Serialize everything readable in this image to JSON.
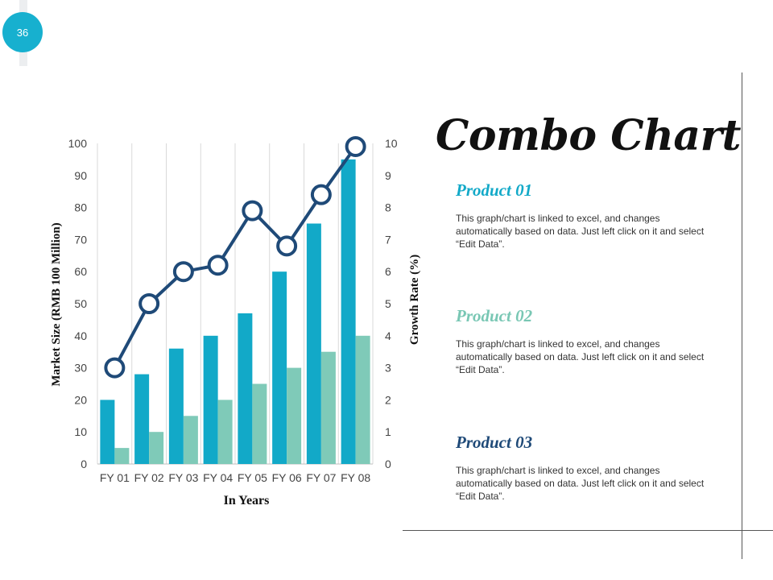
{
  "slide": {
    "number": "36"
  },
  "title": "Combo Chart",
  "colors": {
    "badge": "#17b0cf",
    "product1": "#12a9c8",
    "product2": "#79c7b4",
    "product3": "#1f4a78"
  },
  "products": [
    {
      "name": "Product 01",
      "description": "This graph/chart is linked to excel, and changes automatically based on data. Just left click on it and select “Edit Data”."
    },
    {
      "name": "Product 02",
      "description": "This graph/chart is linked to excel, and changes automatically based on data. Just left click on it and select “Edit Data”."
    },
    {
      "name": "Product 03",
      "description": "This graph/chart is linked to excel, and changes automatically based on data. Just left click on it and select “Edit Data”."
    }
  ],
  "chart_data": {
    "type": "bar",
    "title": "",
    "xlabel": "In Years",
    "ylabel": "Market Size (RMB 100 Million)",
    "y2label": "Growth Rate (%)",
    "categories": [
      "FY 01",
      "FY 02",
      "FY 03",
      "FY 04",
      "FY 05",
      "FY 06",
      "FY 07",
      "FY 08"
    ],
    "ylim": [
      0,
      100
    ],
    "y2lim": [
      0,
      10
    ],
    "yticks": [
      "0",
      "10",
      "20",
      "30",
      "40",
      "50",
      "60",
      "70",
      "80",
      "90",
      "100"
    ],
    "y2ticks": [
      "0",
      "1",
      "2",
      "3",
      "4",
      "5",
      "6",
      "7",
      "8",
      "9",
      "10"
    ],
    "series": [
      {
        "name": "Product 01",
        "type": "bar",
        "axis": "left",
        "color": "#12a9c8",
        "values": [
          20,
          28,
          36,
          40,
          47,
          60,
          75,
          95
        ]
      },
      {
        "name": "Product 02",
        "type": "bar",
        "axis": "left",
        "color": "#7fcab8",
        "values": [
          5,
          10,
          15,
          20,
          25,
          30,
          35,
          40
        ]
      },
      {
        "name": "Product 03",
        "type": "line",
        "axis": "right",
        "color": "#1f4a78",
        "values": [
          3,
          5,
          6,
          6.2,
          7.9,
          6.8,
          8.4,
          9.9
        ]
      }
    ]
  }
}
